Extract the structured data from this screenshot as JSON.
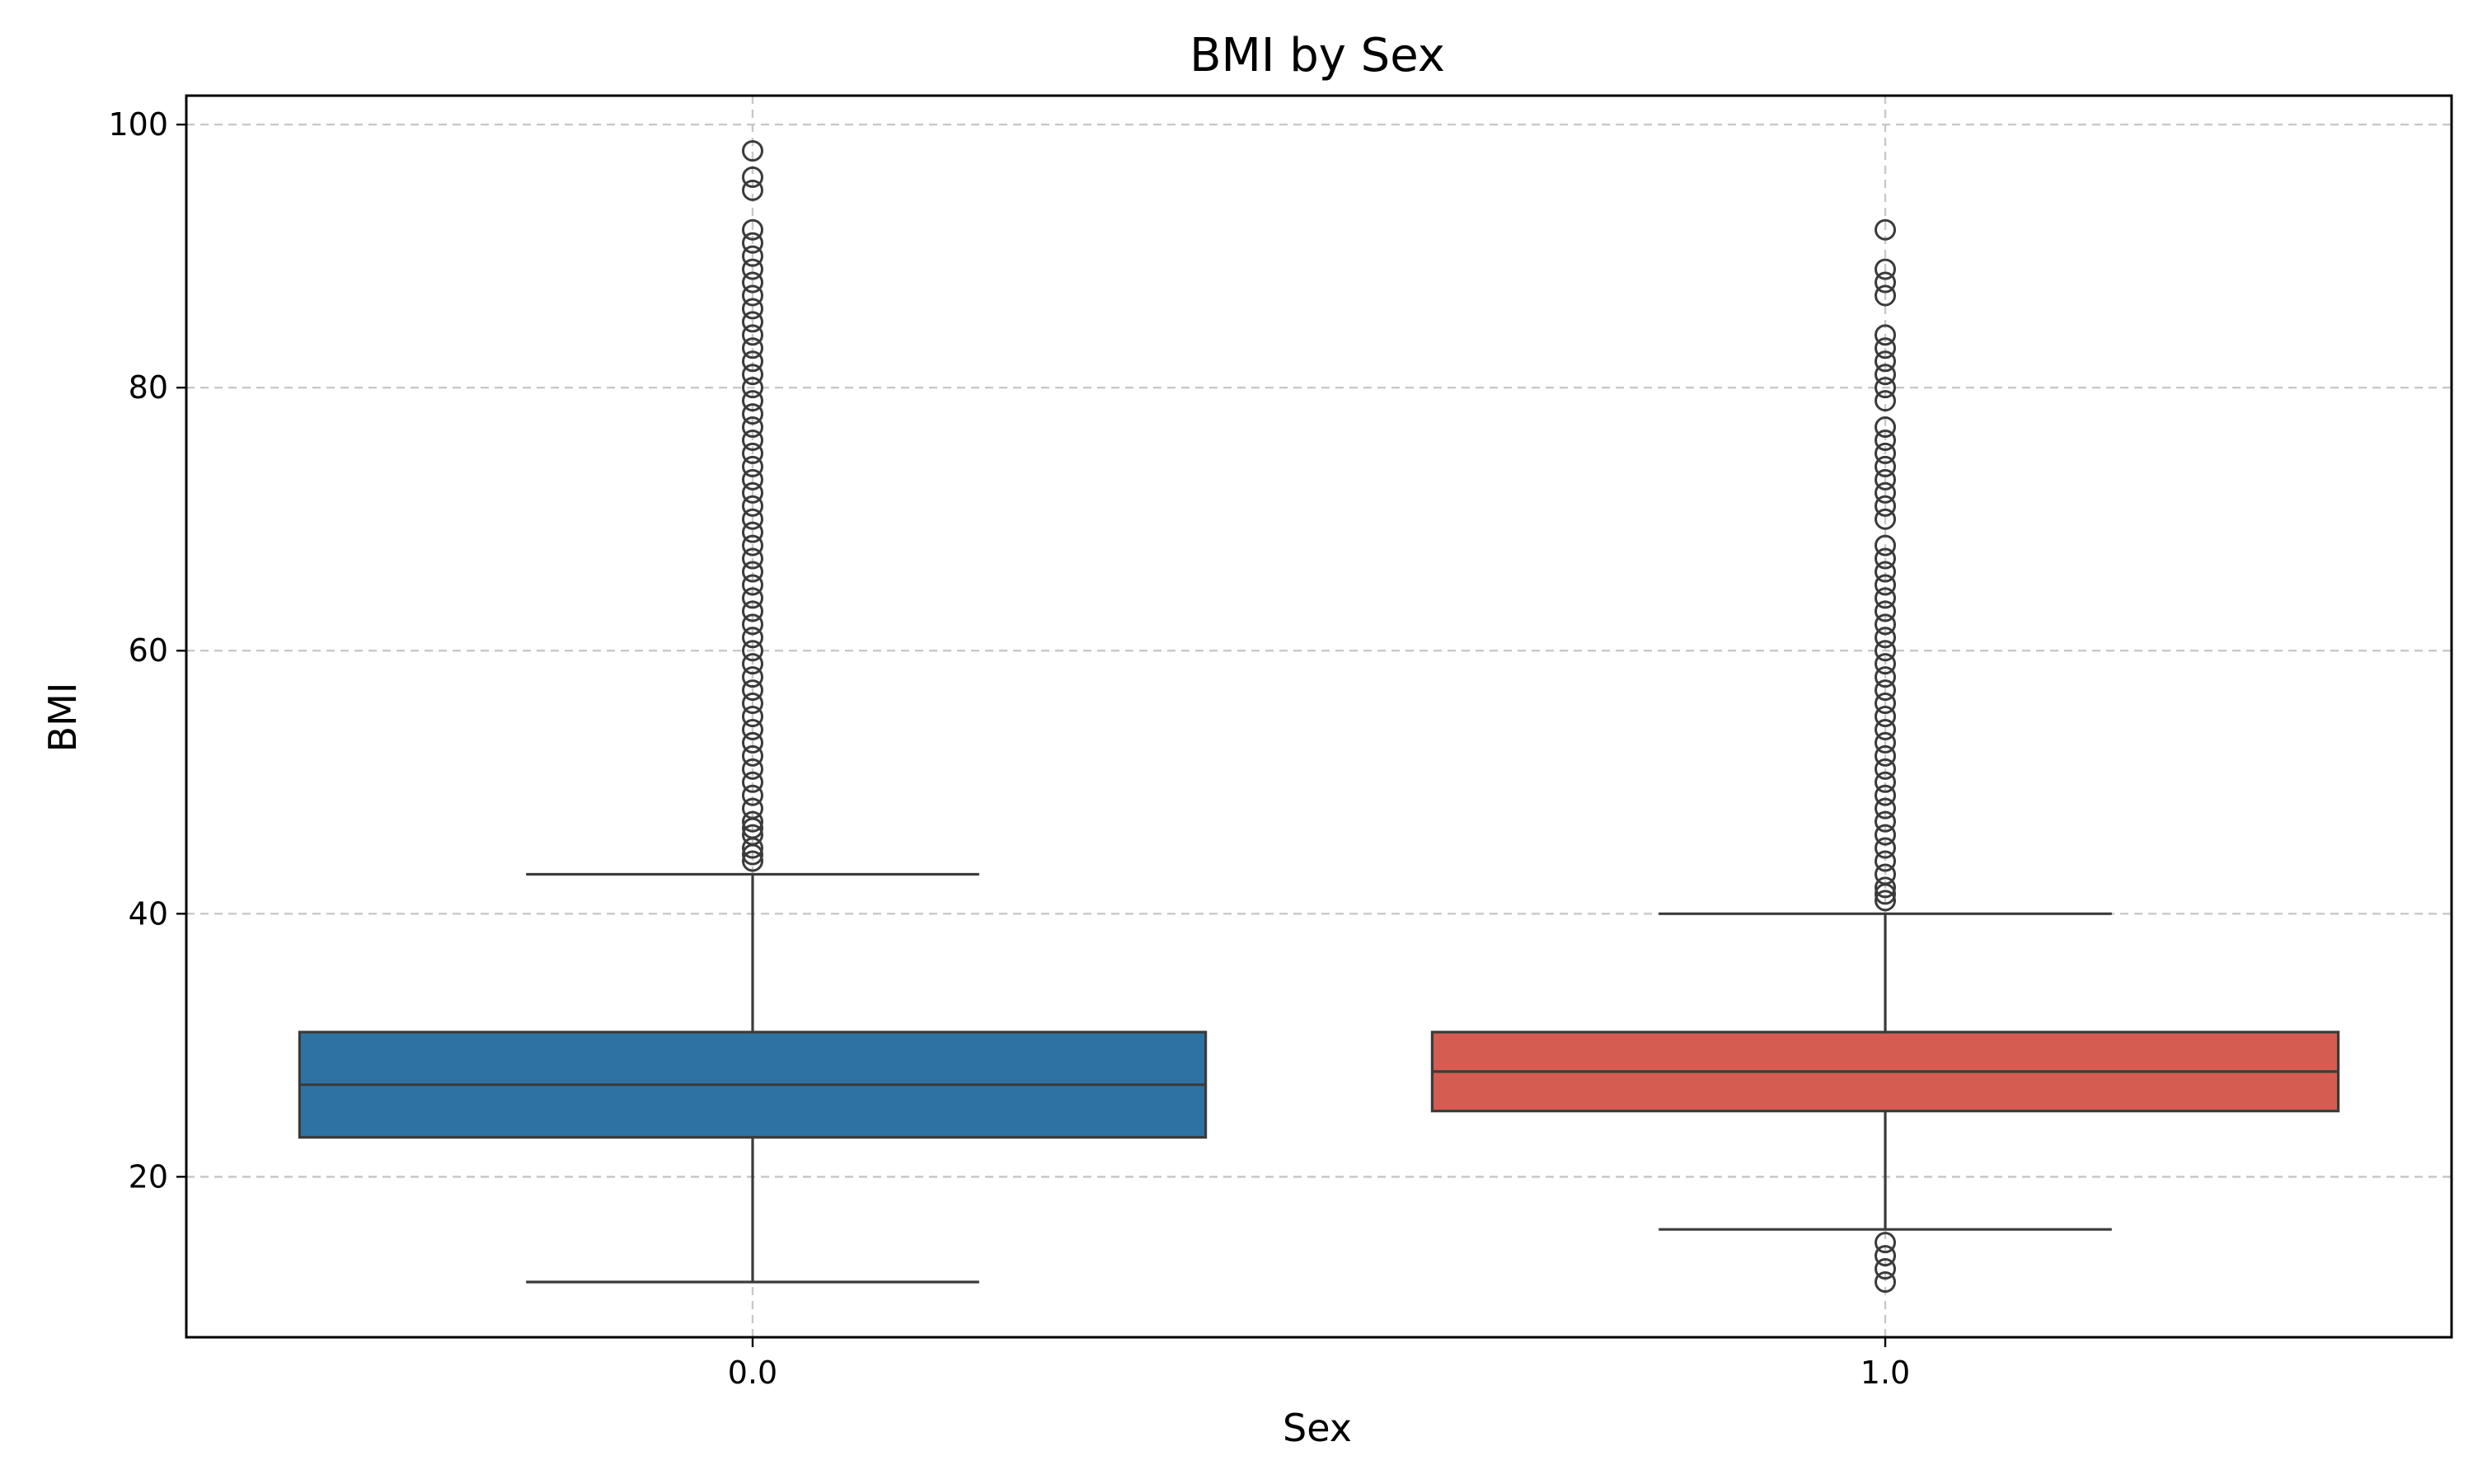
{
  "chart_data": {
    "type": "box",
    "title": "BMI by Sex",
    "xlabel": "Sex",
    "ylabel": "BMI",
    "categories": [
      "0.0",
      "1.0"
    ],
    "ylim": [
      7.8,
      102.2
    ],
    "yticks": [
      20,
      40,
      60,
      80,
      100
    ],
    "grid": true,
    "boxes": [
      {
        "category": "0.0",
        "color": "#2e72a4",
        "whisker_low": 12,
        "q1": 23,
        "median": 27,
        "q3": 31,
        "whisker_high": 43,
        "outliers": [
          44,
          44.5,
          45,
          46,
          46.5,
          47,
          48,
          49,
          50,
          51,
          52,
          53,
          54,
          55,
          56,
          57,
          58,
          59,
          60,
          61,
          62,
          63,
          64,
          65,
          66,
          67,
          68,
          69,
          70,
          71,
          72,
          73,
          74,
          75,
          76,
          77,
          78,
          79,
          80,
          81,
          82,
          83,
          84,
          85,
          86,
          87,
          88,
          89,
          90,
          91,
          92,
          95,
          96,
          98
        ]
      },
      {
        "category": "1.0",
        "color": "#d55c50",
        "whisker_low": 16,
        "q1": 25,
        "median": 28,
        "q3": 31,
        "whisker_high": 40,
        "outliers": [
          12,
          13,
          14,
          15,
          41,
          41.5,
          42,
          43,
          44,
          45,
          46,
          47,
          48,
          49,
          50,
          51,
          52,
          53,
          54,
          55,
          56,
          57,
          58,
          59,
          60,
          61,
          62,
          63,
          64,
          65,
          66,
          67,
          68,
          70,
          71,
          72,
          73,
          74,
          75,
          76,
          77,
          79,
          80,
          81,
          82,
          83,
          84,
          87,
          88,
          89,
          92
        ]
      }
    ]
  }
}
